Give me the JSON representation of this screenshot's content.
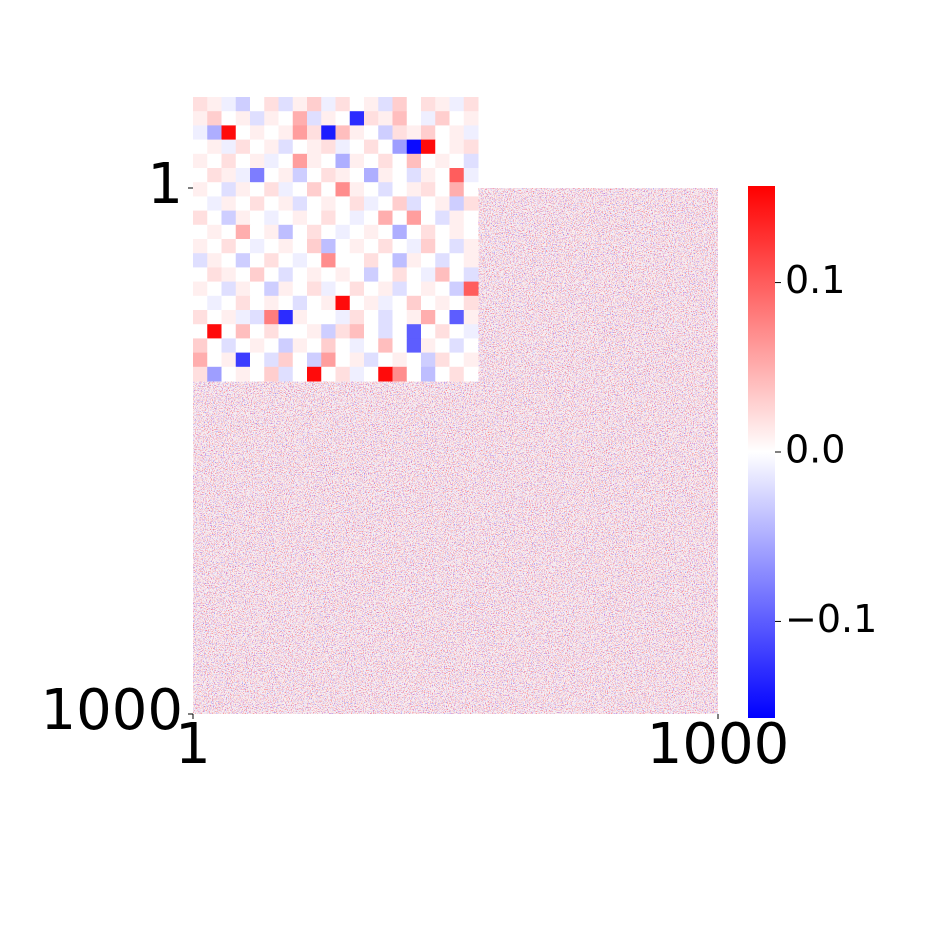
{
  "chart_data": {
    "type": "heatmap",
    "colormap": "bwr",
    "clim": [
      -0.157,
      0.157
    ],
    "colorbar_ticks": [
      {
        "value": -0.1,
        "label": "−0.1"
      },
      {
        "value": 0,
        "label": "0.0"
      },
      {
        "value": 0.1,
        "label": "0.1"
      }
    ],
    "xlim": [
      1,
      1000
    ],
    "ylim": [
      1,
      1000
    ],
    "xticks": [
      1,
      1000
    ],
    "yticks": [
      1,
      1000
    ],
    "inset_values": [
      [
        0.02,
        0.01,
        -0.01,
        -0.03,
        0.0,
        0.02,
        -0.02,
        0.01,
        0.03,
        -0.01,
        0.02,
        0.0,
        0.01,
        -0.02,
        0.03,
        0.0,
        0.02,
        0.01,
        -0.01,
        0.02
      ],
      [
        0.01,
        0.03,
        0.0,
        0.01,
        -0.02,
        0.01,
        0.0,
        0.05,
        -0.02,
        0.01,
        0.0,
        -0.13,
        0.02,
        0.01,
        0.04,
        0.0,
        -0.01,
        0.03,
        0.0,
        0.01
      ],
      [
        -0.01,
        -0.05,
        0.15,
        0.0,
        0.01,
        0.0,
        0.01,
        0.06,
        0.02,
        -0.14,
        0.04,
        0.01,
        0.0,
        -0.03,
        0.02,
        0.01,
        0.03,
        0.0,
        0.01,
        -0.01
      ],
      [
        0.0,
        0.01,
        -0.01,
        0.02,
        0.0,
        0.01,
        -0.02,
        0.0,
        0.01,
        0.02,
        -0.01,
        0.0,
        0.02,
        0.0,
        -0.06,
        -0.15,
        0.15,
        0.0,
        0.01,
        0.02
      ],
      [
        0.01,
        0.0,
        0.02,
        0.0,
        0.01,
        -0.01,
        0.0,
        0.06,
        0.01,
        0.0,
        -0.05,
        0.01,
        0.0,
        0.02,
        0.0,
        0.04,
        0.0,
        0.01,
        0.0,
        -0.02
      ],
      [
        0.0,
        0.02,
        0.01,
        -0.01,
        -0.08,
        0.0,
        0.01,
        -0.03,
        0.0,
        0.02,
        0.01,
        0.0,
        -0.05,
        0.01,
        0.0,
        -0.02,
        0.01,
        0.0,
        0.1,
        -0.01
      ],
      [
        0.01,
        0.0,
        -0.02,
        0.01,
        0.0,
        0.02,
        -0.01,
        0.0,
        0.03,
        0.0,
        0.07,
        0.01,
        0.0,
        -0.02,
        0.0,
        0.01,
        0.02,
        0.0,
        0.05,
        0.0
      ],
      [
        0.0,
        -0.01,
        0.01,
        0.0,
        0.02,
        0.0,
        0.01,
        -0.02,
        0.0,
        0.01,
        0.0,
        0.02,
        -0.01,
        0.0,
        0.03,
        -0.02,
        0.0,
        0.01,
        -0.03,
        0.02
      ],
      [
        0.02,
        0.0,
        -0.03,
        0.01,
        0.0,
        -0.01,
        0.0,
        0.01,
        0.0,
        0.02,
        0.0,
        -0.01,
        0.0,
        0.05,
        0.0,
        0.06,
        0.0,
        -0.02,
        0.01,
        0.0
      ],
      [
        0.0,
        0.01,
        0.0,
        0.05,
        0.0,
        0.01,
        -0.04,
        0.0,
        0.02,
        0.0,
        -0.01,
        0.0,
        0.01,
        0.0,
        -0.05,
        0.0,
        0.02,
        0.0,
        0.01,
        0.0
      ],
      [
        0.01,
        0.0,
        0.02,
        0.0,
        -0.01,
        0.0,
        0.01,
        0.0,
        0.03,
        -0.04,
        0.0,
        0.01,
        0.0,
        0.02,
        0.0,
        -0.01,
        0.03,
        0.0,
        -0.02,
        0.01
      ],
      [
        -0.02,
        0.01,
        0.0,
        -0.03,
        0.0,
        0.02,
        0.0,
        -0.01,
        0.0,
        0.07,
        0.0,
        0.0,
        0.02,
        0.0,
        -0.04,
        0.01,
        0.0,
        -0.02,
        0.0,
        0.01
      ],
      [
        0.0,
        0.02,
        0.01,
        0.0,
        0.03,
        0.0,
        -0.02,
        0.0,
        0.01,
        0.0,
        0.01,
        0.0,
        -0.03,
        0.0,
        0.02,
        0.0,
        -0.01,
        0.04,
        0.0,
        -0.02
      ],
      [
        0.01,
        0.0,
        -0.02,
        0.01,
        0.0,
        -0.03,
        0.01,
        0.0,
        0.02,
        -0.01,
        0.0,
        0.02,
        0.0,
        0.01,
        -0.02,
        0.0,
        0.01,
        0.0,
        -0.03,
        0.1
      ],
      [
        0.0,
        -0.01,
        0.0,
        0.02,
        0.0,
        0.01,
        0.0,
        -0.02,
        0.0,
        0.01,
        0.15,
        0.0,
        0.01,
        -0.01,
        0.0,
        0.03,
        0.0,
        0.01,
        0.0,
        0.02
      ],
      [
        0.02,
        0.0,
        0.01,
        -0.01,
        -0.02,
        0.08,
        -0.13,
        0.01,
        0.0,
        0.0,
        -0.01,
        0.02,
        0.0,
        -0.02,
        0.0,
        0.01,
        0.05,
        0.0,
        -0.1,
        0.01
      ],
      [
        0.0,
        0.15,
        0.0,
        0.04,
        0.0,
        0.02,
        0.0,
        0.0,
        0.01,
        -0.03,
        0.02,
        0.04,
        0.0,
        -0.02,
        0.0,
        -0.1,
        0.0,
        0.02,
        0.0,
        -0.01
      ],
      [
        0.03,
        0.0,
        -0.02,
        0.0,
        0.01,
        0.0,
        -0.03,
        0.01,
        0.0,
        0.03,
        0.0,
        -0.01,
        0.0,
        0.04,
        0.0,
        -0.1,
        0.01,
        0.0,
        -0.02,
        0.0
      ],
      [
        0.05,
        0.0,
        0.01,
        -0.12,
        0.0,
        -0.02,
        0.03,
        0.0,
        -0.03,
        0.06,
        0.0,
        0.01,
        -0.02,
        0.0,
        0.01,
        0.0,
        -0.03,
        0.02,
        0.0,
        0.01
      ],
      [
        0.02,
        -0.06,
        0.0,
        0.01,
        0.0,
        0.03,
        -0.02,
        0.0,
        0.15,
        0.0,
        0.02,
        -0.01,
        0.0,
        0.15,
        0.07,
        0.0,
        -0.04,
        0.0,
        0.02,
        0.0
      ]
    ]
  }
}
